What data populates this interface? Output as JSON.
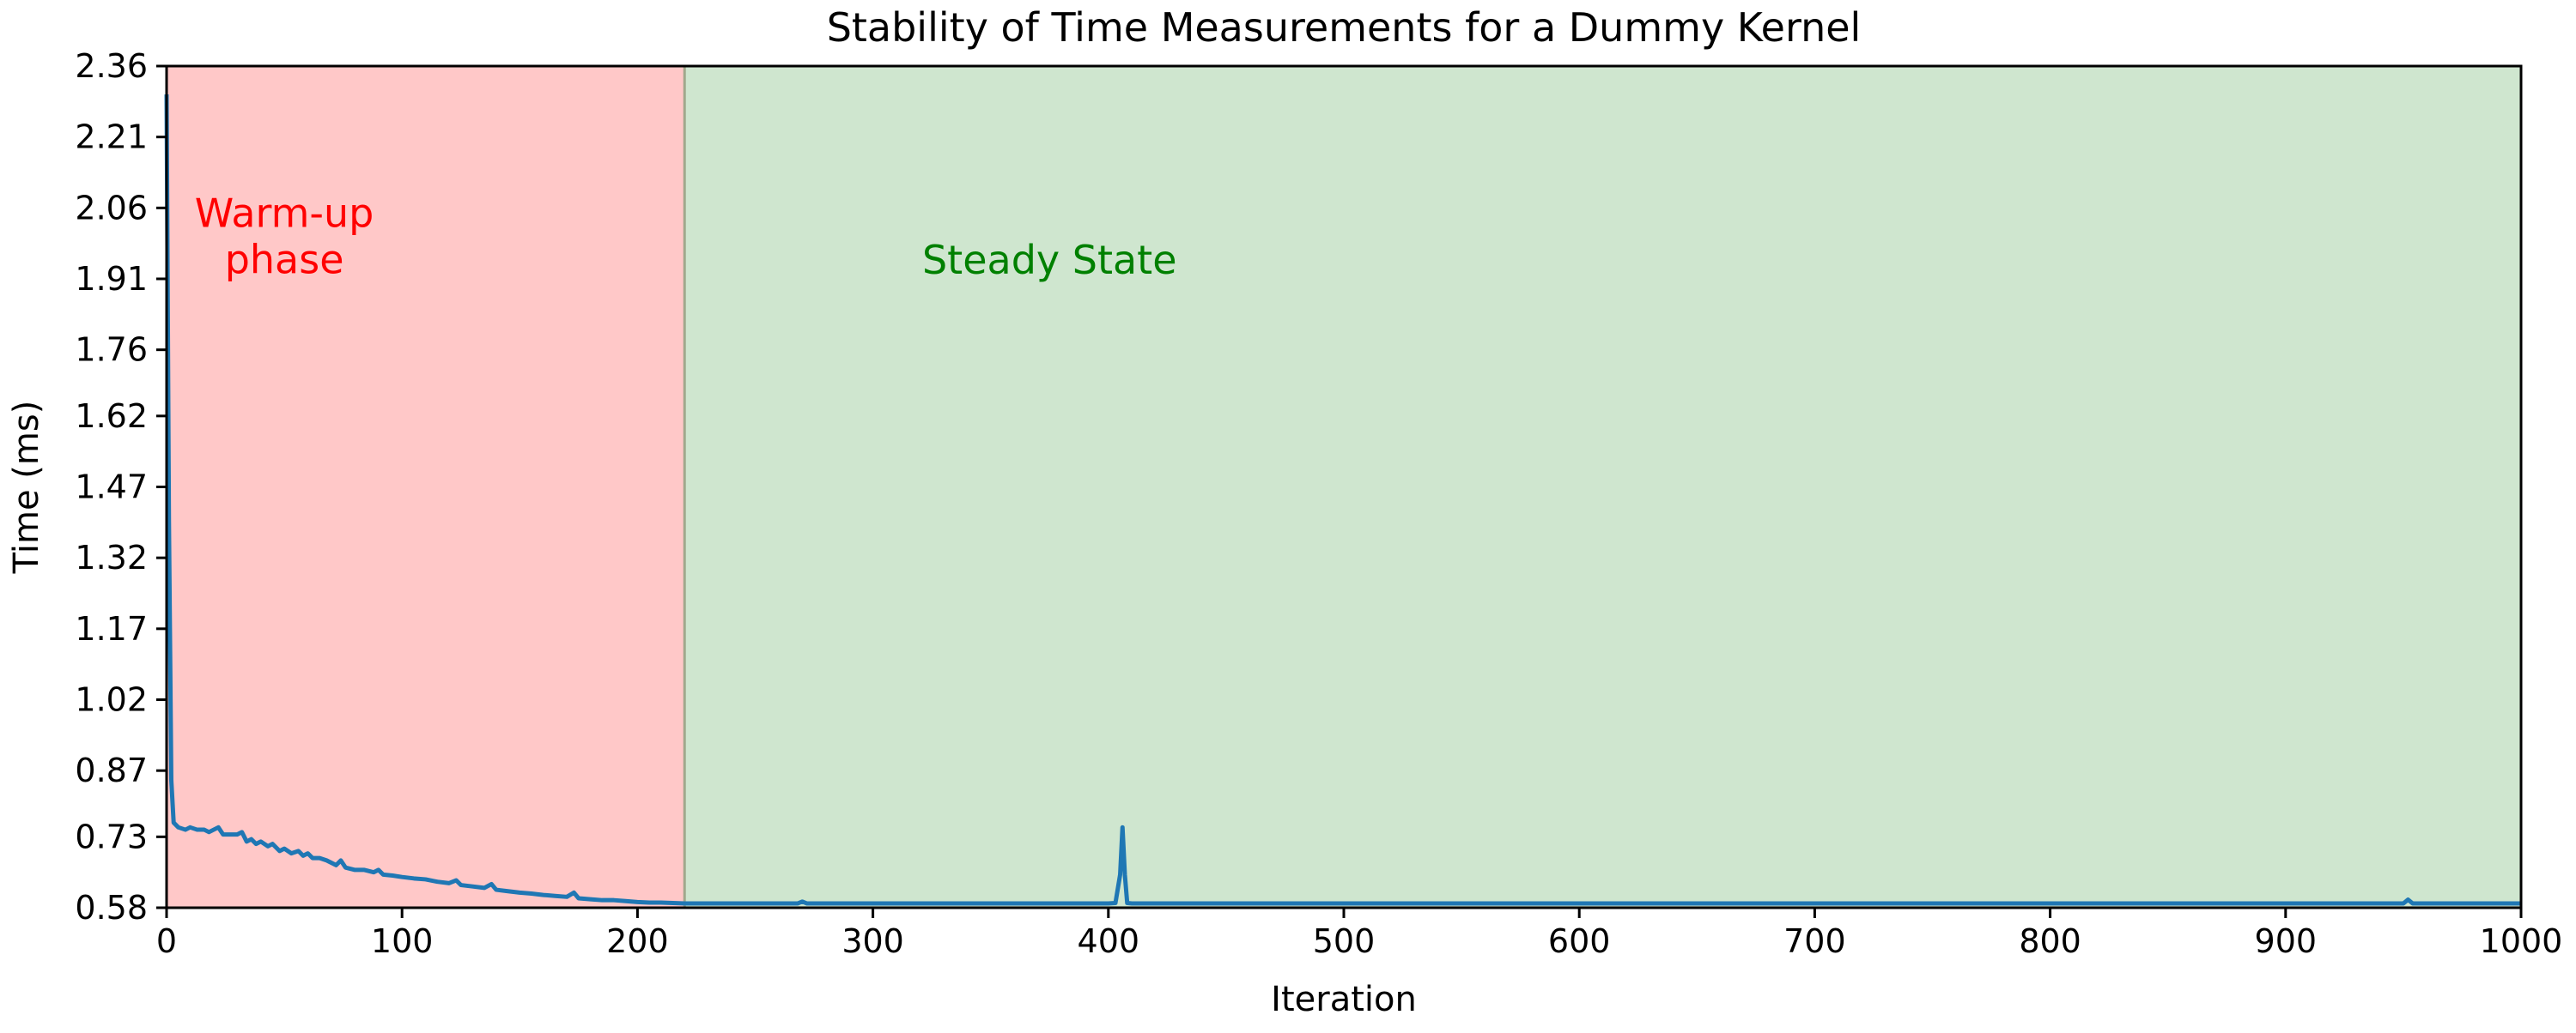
{
  "chart_data": {
    "type": "line",
    "title": "Stability of Time Measurements for a Dummy Kernel",
    "xlabel": "Iteration",
    "ylabel": "Time (ms)",
    "xlim": [
      0,
      1000
    ],
    "ylim": [
      0.58,
      2.36
    ],
    "x_ticks": [
      0,
      100,
      200,
      300,
      400,
      500,
      600,
      700,
      800,
      900,
      1000
    ],
    "y_ticks": [
      0.58,
      0.73,
      0.87,
      1.02,
      1.17,
      1.32,
      1.47,
      1.62,
      1.76,
      1.91,
      2.06,
      2.21,
      2.36
    ],
    "y_tick_labels": [
      "0.58",
      "0.73",
      "0.87",
      "1.02",
      "1.17",
      "1.32",
      "1.47",
      "1.62",
      "1.76",
      "1.91",
      "2.06",
      "2.21",
      "2.36"
    ],
    "grid": false,
    "regions": [
      {
        "label": "Warm-up\nphase",
        "x_start": 0,
        "x_end": 220,
        "fill": "#ffc8c8",
        "text_color": "#ff0000",
        "label_x": 50,
        "label_y": 2.0
      },
      {
        "label": "Steady State",
        "x_start": 220,
        "x_end": 1000,
        "fill": "#cfe6cf",
        "text_color": "#008000",
        "label_x": 375,
        "label_y": 1.95
      }
    ],
    "divider_color": "#a0a88c",
    "series": [
      {
        "color": "#1f77b4",
        "points": [
          [
            0,
            2.3
          ],
          [
            1,
            1.4
          ],
          [
            2,
            0.85
          ],
          [
            3,
            0.76
          ],
          [
            5,
            0.75
          ],
          [
            8,
            0.745
          ],
          [
            10,
            0.75
          ],
          [
            13,
            0.745
          ],
          [
            16,
            0.745
          ],
          [
            18,
            0.74
          ],
          [
            20,
            0.745
          ],
          [
            22,
            0.75
          ],
          [
            24,
            0.735
          ],
          [
            27,
            0.735
          ],
          [
            30,
            0.735
          ],
          [
            32,
            0.74
          ],
          [
            34,
            0.72
          ],
          [
            36,
            0.725
          ],
          [
            38,
            0.715
          ],
          [
            40,
            0.72
          ],
          [
            43,
            0.71
          ],
          [
            45,
            0.715
          ],
          [
            48,
            0.7
          ],
          [
            50,
            0.705
          ],
          [
            53,
            0.695
          ],
          [
            56,
            0.7
          ],
          [
            58,
            0.69
          ],
          [
            60,
            0.695
          ],
          [
            62,
            0.685
          ],
          [
            65,
            0.685
          ],
          [
            68,
            0.68
          ],
          [
            70,
            0.675
          ],
          [
            72,
            0.67
          ],
          [
            74,
            0.68
          ],
          [
            76,
            0.665
          ],
          [
            80,
            0.66
          ],
          [
            84,
            0.66
          ],
          [
            88,
            0.655
          ],
          [
            90,
            0.66
          ],
          [
            92,
            0.65
          ],
          [
            96,
            0.648
          ],
          [
            100,
            0.645
          ],
          [
            105,
            0.642
          ],
          [
            110,
            0.64
          ],
          [
            115,
            0.635
          ],
          [
            120,
            0.632
          ],
          [
            123,
            0.638
          ],
          [
            125,
            0.628
          ],
          [
            130,
            0.625
          ],
          [
            135,
            0.622
          ],
          [
            138,
            0.63
          ],
          [
            140,
            0.618
          ],
          [
            145,
            0.615
          ],
          [
            150,
            0.612
          ],
          [
            155,
            0.61
          ],
          [
            160,
            0.607
          ],
          [
            165,
            0.605
          ],
          [
            170,
            0.603
          ],
          [
            173,
            0.612
          ],
          [
            175,
            0.6
          ],
          [
            180,
            0.598
          ],
          [
            185,
            0.596
          ],
          [
            190,
            0.596
          ],
          [
            195,
            0.594
          ],
          [
            200,
            0.592
          ],
          [
            205,
            0.591
          ],
          [
            210,
            0.591
          ],
          [
            215,
            0.59
          ],
          [
            220,
            0.589
          ],
          [
            250,
            0.589
          ],
          [
            268,
            0.589
          ],
          [
            270,
            0.593
          ],
          [
            272,
            0.589
          ],
          [
            300,
            0.589
          ],
          [
            350,
            0.589
          ],
          [
            400,
            0.589
          ],
          [
            403,
            0.59
          ],
          [
            405,
            0.65
          ],
          [
            406,
            0.75
          ],
          [
            407,
            0.65
          ],
          [
            408,
            0.59
          ],
          [
            410,
            0.589
          ],
          [
            450,
            0.589
          ],
          [
            500,
            0.589
          ],
          [
            550,
            0.589
          ],
          [
            600,
            0.589
          ],
          [
            650,
            0.589
          ],
          [
            700,
            0.589
          ],
          [
            750,
            0.589
          ],
          [
            800,
            0.589
          ],
          [
            850,
            0.589
          ],
          [
            900,
            0.589
          ],
          [
            950,
            0.589
          ],
          [
            952,
            0.597
          ],
          [
            954,
            0.589
          ],
          [
            1000,
            0.589
          ]
        ]
      }
    ]
  }
}
